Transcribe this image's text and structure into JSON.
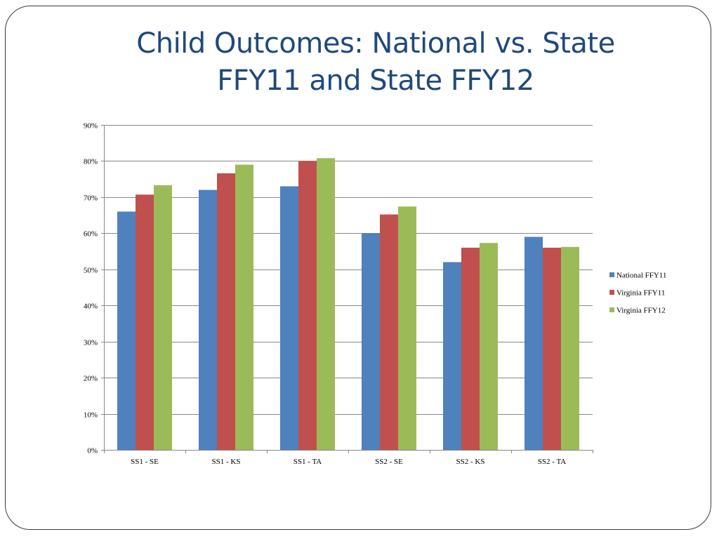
{
  "slide": {
    "title_line1": "Child Outcomes: National vs. State",
    "title_line2": "FFY11 and State FFY12"
  },
  "chart_data": {
    "type": "bar",
    "title": "",
    "xlabel": "",
    "ylabel": "",
    "categories": [
      "SS1 - SE",
      "SS1 - KS",
      "SS1 - TA",
      "SS2 - SE",
      "SS2 - KS",
      "SS2 - TA"
    ],
    "series": [
      {
        "name": "National FFY11",
        "color": "#4f81bd",
        "values": [
          66,
          72,
          73,
          60,
          52,
          59
        ]
      },
      {
        "name": "Virginia FFY11",
        "color": "#c0504d",
        "values": [
          70.7,
          76.6,
          80,
          65.2,
          56,
          56
        ]
      },
      {
        "name": "Virginia FFY12",
        "color": "#9bbb59",
        "values": [
          73.3,
          79,
          80.8,
          67.4,
          57.3,
          56.2
        ]
      }
    ],
    "ylim": [
      0,
      90
    ],
    "yticks": [
      0,
      10,
      20,
      30,
      40,
      50,
      60,
      70,
      80,
      90
    ],
    "ytick_labels": [
      "0%",
      "10%",
      "20%",
      "30%",
      "40%",
      "50%",
      "60%",
      "70%",
      "80%",
      "90%"
    ],
    "grid": true,
    "legend": "right"
  }
}
